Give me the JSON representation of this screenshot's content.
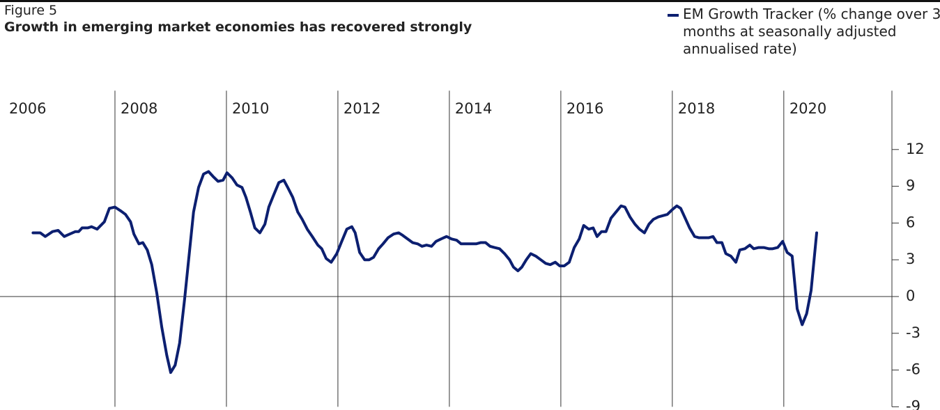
{
  "chart_data": {
    "type": "line",
    "title": "Figure 5",
    "subtitle": "Growth in emerging market economies has recovered strongly",
    "x": [
      2006.53,
      2006.66,
      2006.75,
      2006.88,
      2006.98,
      2007.09,
      2007.19,
      2007.29,
      2007.35,
      2007.41,
      2007.51,
      2007.58,
      2007.68,
      2007.81,
      2007.9,
      2008.0,
      2008.1,
      2008.19,
      2008.28,
      2008.34,
      2008.43,
      2008.5,
      2008.58,
      2008.66,
      2008.75,
      2008.84,
      2008.93,
      2009.0,
      2009.08,
      2009.16,
      2009.25,
      2009.34,
      2009.41,
      2009.5,
      2009.59,
      2009.68,
      2009.76,
      2009.85,
      2009.94,
      2010.01,
      2010.1,
      2010.19,
      2010.28,
      2010.35,
      2010.43,
      2010.51,
      2010.6,
      2010.69,
      2010.76,
      2010.84,
      2010.94,
      2011.03,
      2011.1,
      2011.19,
      2011.28,
      2011.36,
      2011.45,
      2011.54,
      2011.64,
      2011.71,
      2011.79,
      2011.88,
      2011.98,
      2012.06,
      2012.16,
      2012.25,
      2012.31,
      2012.39,
      2012.48,
      2012.56,
      2012.64,
      2012.73,
      2012.81,
      2012.9,
      2013.0,
      2013.09,
      2013.16,
      2013.25,
      2013.34,
      2013.43,
      2013.51,
      2013.59,
      2013.68,
      2013.76,
      2013.85,
      2013.95,
      2014.04,
      2014.13,
      2014.21,
      2014.3,
      2014.39,
      2014.48,
      2014.56,
      2014.65,
      2014.73,
      2014.81,
      2014.9,
      2014.99,
      2015.08,
      2015.15,
      2015.23,
      2015.3,
      2015.38,
      2015.46,
      2015.55,
      2015.64,
      2015.73,
      2015.81,
      2015.9,
      2015.98,
      2016.06,
      2016.15,
      2016.24,
      2016.33,
      2016.41,
      2016.5,
      2016.58,
      2016.65,
      2016.73,
      2016.81,
      2016.9,
      2016.99,
      2017.08,
      2017.15,
      2017.24,
      2017.33,
      2017.41,
      2017.5,
      2017.58,
      2017.66,
      2017.75,
      2017.83,
      2017.91,
      2018.0,
      2018.08,
      2018.15,
      2018.23,
      2018.31,
      2018.4,
      2018.48,
      2018.56,
      2018.65,
      2018.73,
      2018.8,
      2018.89,
      2018.96,
      2019.05,
      2019.14,
      2019.21,
      2019.3,
      2019.39,
      2019.46,
      2019.55,
      2019.64,
      2019.73,
      2019.8,
      2019.89,
      2019.98,
      2020.06,
      2020.15,
      2020.24,
      2020.33,
      2020.41,
      2020.49,
      2020.59
    ],
    "series": [
      {
        "name": "EM Growth Tracker (% change over 3 months at seasonally adjusted annualised rate)",
        "color": "#0c1f70",
        "values": [
          5.2,
          5.2,
          4.9,
          5.3,
          5.4,
          4.9,
          5.1,
          5.3,
          5.3,
          5.6,
          5.6,
          5.7,
          5.5,
          6.1,
          7.2,
          7.3,
          7.0,
          6.7,
          6.1,
          5.1,
          4.3,
          4.4,
          3.8,
          2.6,
          0.3,
          -2.5,
          -4.8,
          -6.2,
          -5.6,
          -3.8,
          -0.2,
          3.8,
          6.9,
          8.9,
          10.0,
          10.2,
          9.8,
          9.4,
          9.5,
          10.1,
          9.7,
          9.1,
          8.9,
          8.1,
          6.9,
          5.6,
          5.2,
          5.9,
          7.3,
          8.2,
          9.3,
          9.5,
          8.9,
          8.1,
          6.9,
          6.3,
          5.5,
          4.9,
          4.2,
          3.9,
          3.1,
          2.8,
          3.5,
          4.4,
          5.5,
          5.7,
          5.2,
          3.6,
          3.0,
          3.0,
          3.2,
          3.9,
          4.3,
          4.8,
          5.1,
          5.2,
          5.0,
          4.7,
          4.4,
          4.3,
          4.1,
          4.2,
          4.1,
          4.5,
          4.7,
          4.9,
          4.7,
          4.6,
          4.3,
          4.3,
          4.3,
          4.3,
          4.4,
          4.4,
          4.1,
          4.0,
          3.9,
          3.5,
          3.0,
          2.4,
          2.1,
          2.4,
          3.0,
          3.5,
          3.3,
          3.0,
          2.7,
          2.6,
          2.8,
          2.5,
          2.5,
          2.8,
          4.0,
          4.7,
          5.8,
          5.5,
          5.6,
          4.9,
          5.3,
          5.3,
          6.4,
          6.9,
          7.4,
          7.3,
          6.5,
          5.9,
          5.5,
          5.2,
          5.9,
          6.3,
          6.5,
          6.6,
          6.7,
          7.1,
          7.4,
          7.2,
          6.4,
          5.6,
          4.9,
          4.8,
          4.8,
          4.8,
          4.9,
          4.4,
          4.4,
          3.5,
          3.3,
          2.8,
          3.8,
          3.9,
          4.2,
          3.9,
          4.0,
          4.0,
          3.9,
          3.9,
          4.0,
          4.5,
          3.6,
          3.3,
          -1.0,
          -2.3,
          -1.4,
          0.5,
          5.2
        ]
      }
    ],
    "xlim": [
      2006,
      2021.94
    ],
    "xticks": [
      2006,
      2008,
      2010,
      2012,
      2014,
      2016,
      2018,
      2020
    ],
    "ylim": [
      -9,
      16.8
    ],
    "yticks": [
      -9,
      -6,
      -3,
      0,
      3,
      6,
      9,
      12
    ]
  }
}
